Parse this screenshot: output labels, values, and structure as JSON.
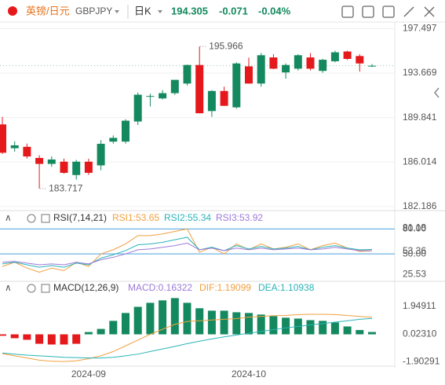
{
  "header": {
    "name": "英镑/日元",
    "symbol": "GBPJPY",
    "period": "日K",
    "change": "-0.071",
    "change_pct": "-0.04%"
  },
  "chart_data": [
    {
      "type": "candlestick",
      "categories": [
        null,
        null,
        null,
        null,
        null,
        null,
        null,
        "2024-09",
        null,
        null,
        null,
        null,
        null,
        null,
        null,
        null,
        null,
        null,
        null,
        null,
        "2024-10",
        null,
        null,
        null,
        null,
        null,
        null,
        null,
        null,
        null,
        null
      ],
      "open": [
        189.25,
        187.2,
        187.32,
        186.36,
        185.85,
        186.04,
        184.89,
        186.04,
        185.72,
        187.77,
        187.77,
        189.5,
        191.68,
        191.49,
        191.94,
        192.77,
        194.37,
        190.4,
        192.13,
        190.72,
        194.25,
        192.77,
        195.02,
        193.73,
        194.05,
        195.02,
        193.86,
        194.69,
        195.53,
        195.14,
        194.3
      ],
      "high": [
        189.9,
        187.8,
        187.6,
        186.6,
        186.5,
        186.3,
        186.2,
        186.3,
        187.9,
        188.3,
        189.7,
        192.0,
        191.9,
        192.2,
        193.0,
        194.4,
        195.966,
        192.2,
        192.5,
        194.6,
        195.0,
        195.4,
        195.3,
        194.5,
        195.3,
        195.4,
        194.9,
        195.6,
        195.6,
        195.3,
        194.45
      ],
      "low": [
        186.7,
        186.9,
        186.3,
        183.717,
        185.6,
        185.0,
        184.5,
        184.9,
        185.3,
        187.6,
        187.6,
        189.2,
        190.8,
        191.4,
        191.8,
        192.6,
        190.21,
        189.9,
        190.85,
        190.6,
        192.77,
        192.5,
        194.0,
        193.2,
        193.9,
        193.9,
        193.7,
        194.6,
        194.8,
        193.8,
        194.2
      ],
      "close": [
        186.81,
        187.45,
        186.49,
        185.85,
        186.23,
        185.08,
        186.04,
        185.08,
        187.58,
        188.09,
        189.57,
        191.81,
        191.7,
        191.94,
        193.09,
        194.37,
        190.21,
        192.13,
        190.85,
        194.5,
        192.77,
        195.21,
        194.05,
        194.37,
        195.21,
        194.05,
        194.82,
        195.46,
        194.89,
        194.5,
        194.305
      ],
      "up_color": "#14895f",
      "down_color": "#e5191c",
      "ylim": [
        182.1,
        197.8
      ],
      "yticks": [
        197.497,
        193.669,
        189.841,
        186.014,
        182.186
      ],
      "grid": true
    },
    {
      "type": "line",
      "title": "RSI(7,14,21)",
      "series": [
        {
          "name": "RSI1:53.65",
          "color": "#f0a040",
          "values": [
            35,
            40,
            33,
            28,
            33,
            30,
            40,
            35,
            50,
            55,
            62,
            72,
            72,
            74,
            77,
            80,
            52,
            58,
            50,
            62,
            55,
            62,
            56,
            58,
            62,
            55,
            60,
            63,
            57,
            53,
            53.65
          ]
        },
        {
          "name": "RSI2:55.34",
          "color": "#2bb3b8",
          "values": [
            38,
            40,
            37,
            34,
            36,
            34,
            39,
            37,
            45,
            49,
            54,
            61,
            62,
            64,
            67,
            70,
            55,
            58,
            54,
            60,
            56,
            59,
            56,
            57,
            59,
            55,
            58,
            60,
            57,
            55,
            55.34
          ]
        },
        {
          "name": "RSI3:53.92",
          "color": "#9d7ad8",
          "values": [
            40,
            41,
            39,
            37,
            38,
            37,
            40,
            38,
            43,
            46,
            50,
            55,
            56,
            58,
            60,
            63,
            55,
            57,
            54,
            57,
            55,
            57,
            55,
            56,
            57,
            55,
            56,
            58,
            56,
            54,
            53.92
          ]
        }
      ],
      "ylim": [
        20,
        86
      ],
      "yticks": [
        {
          "value": 80,
          "label": "80.00"
        },
        81.18,
        53.36,
        {
          "value": 50,
          "label": "50.00"
        },
        25.53
      ],
      "ref_lines": [
        80,
        50
      ]
    },
    {
      "type": "macd",
      "title": "MACD(12,26,9)",
      "bars": {
        "name": "MACD:0.16322",
        "values": [
          -0.1,
          -0.27,
          -0.38,
          -0.66,
          -0.71,
          -0.71,
          -0.66,
          0.16,
          0.38,
          0.94,
          1.49,
          1.92,
          2.2,
          2.37,
          2.53,
          2.2,
          1.82,
          1.65,
          1.65,
          1.54,
          1.49,
          1.38,
          1.27,
          1.16,
          1.1,
          0.99,
          0.94,
          0.83,
          0.55,
          0.3,
          0.16322
        ]
      },
      "series": [
        {
          "name": "DIF:1.19099",
          "color": "#f0a040",
          "values": [
            -1.35,
            -1.5,
            -1.65,
            -1.8,
            -1.88,
            -1.9,
            -1.85,
            -1.7,
            -1.5,
            -1.2,
            -0.8,
            -0.4,
            0,
            0.35,
            0.7,
            0.9,
            0.95,
            1.0,
            1.05,
            1.1,
            1.2,
            1.25,
            1.3,
            1.32,
            1.38,
            1.4,
            1.4,
            1.38,
            1.32,
            1.25,
            1.19099
          ]
        },
        {
          "name": "DEA:1.10938",
          "color": "#2bb3b8",
          "values": [
            -1.3,
            -1.38,
            -1.45,
            -1.5,
            -1.55,
            -1.6,
            -1.62,
            -1.65,
            -1.65,
            -1.6,
            -1.5,
            -1.38,
            -1.2,
            -1.02,
            -0.84,
            -0.65,
            -0.48,
            -0.32,
            -0.18,
            -0.05,
            0.08,
            0.2,
            0.32,
            0.45,
            0.55,
            0.66,
            0.75,
            0.85,
            0.95,
            1.05,
            1.10938
          ]
        }
      ],
      "ylim": [
        -2.0,
        2.66
      ],
      "yticks": [
        1.94911,
        {
          "value": 0.0231,
          "label": "0.02310"
        },
        -1.90291
      ]
    }
  ]
}
